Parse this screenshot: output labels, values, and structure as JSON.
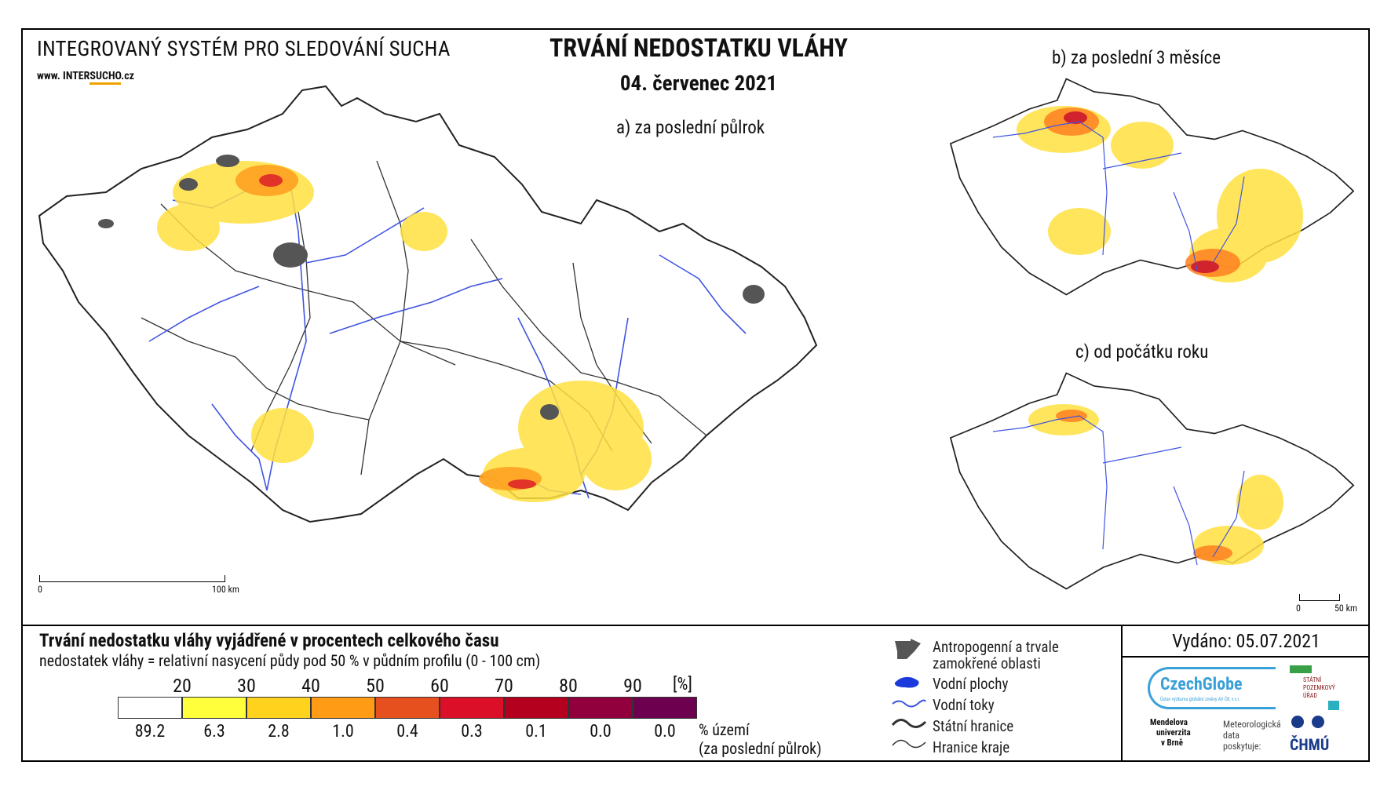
{
  "header": {
    "system_name": "INTEGROVANÝ SYSTÉM PRO SLEDOVÁNÍ SUCHA",
    "url_prefix": "www. INTER",
    "url_brand": "SUCHO",
    "url_suffix": ".cz",
    "title": "TRVÁNÍ NEDOSTATKU VLÁHY",
    "date": "04. červenec 2021"
  },
  "maps": {
    "a_label": "a) za poslední půlrok",
    "b_label": "b) za poslední 3 měsíce",
    "c_label": "c) od počátku roku",
    "scale_a": {
      "zero": "0",
      "end": "100 km"
    },
    "scale_c": {
      "zero": "0",
      "end": "50 km"
    }
  },
  "legend": {
    "title": "Trvání nedostatku vláhy vyjádřené v procentech celkového času",
    "subtitle": "nedostatek vláhy = relativní nasycení půdy pod 50 % v půdním profilu (0 - 100 cm)",
    "unit": "[%]",
    "thresholds": [
      "20",
      "30",
      "40",
      "50",
      "60",
      "70",
      "80",
      "90"
    ],
    "colors": [
      "#ffffff",
      "#ffff3c",
      "#ffd21e",
      "#ff9b14",
      "#e6501e",
      "#dc0f28",
      "#b4001e",
      "#91003c",
      "#6e0050"
    ],
    "area_values": [
      "89.2",
      "6.3",
      "2.8",
      "1.0",
      "0.4",
      "0.3",
      "0.1",
      "0.0",
      "0.0"
    ],
    "area_label_1": "% území",
    "area_label_2": "(za poslední půlrok)",
    "items": {
      "anthro_1": "Antropogenní a trvale",
      "anthro_2": "zamokřené oblasti",
      "water_bodies": "Vodní plochy",
      "rivers": "Vodní toky",
      "state_border": "Státní hranice",
      "region_border": "Hranice kraje"
    }
  },
  "footer": {
    "issued": "Vydáno: 05.07.2021",
    "czechglobe": "CzechGlobe",
    "czechglobe_sub": "Ústav výzkumu globální změny AV ČR, v.v.i.",
    "spu_1": "STÁTNÍ",
    "spu_2": "POZEMKOVÝ",
    "spu_3": "ÚŘAD",
    "mendel_1": "Mendelova",
    "mendel_2": "univerzita",
    "mendel_3": "v Brně",
    "meteo_1": "Meteorologická",
    "meteo_2": "data",
    "meteo_3": "poskytuje:",
    "chmu": "ČHMÚ"
  }
}
